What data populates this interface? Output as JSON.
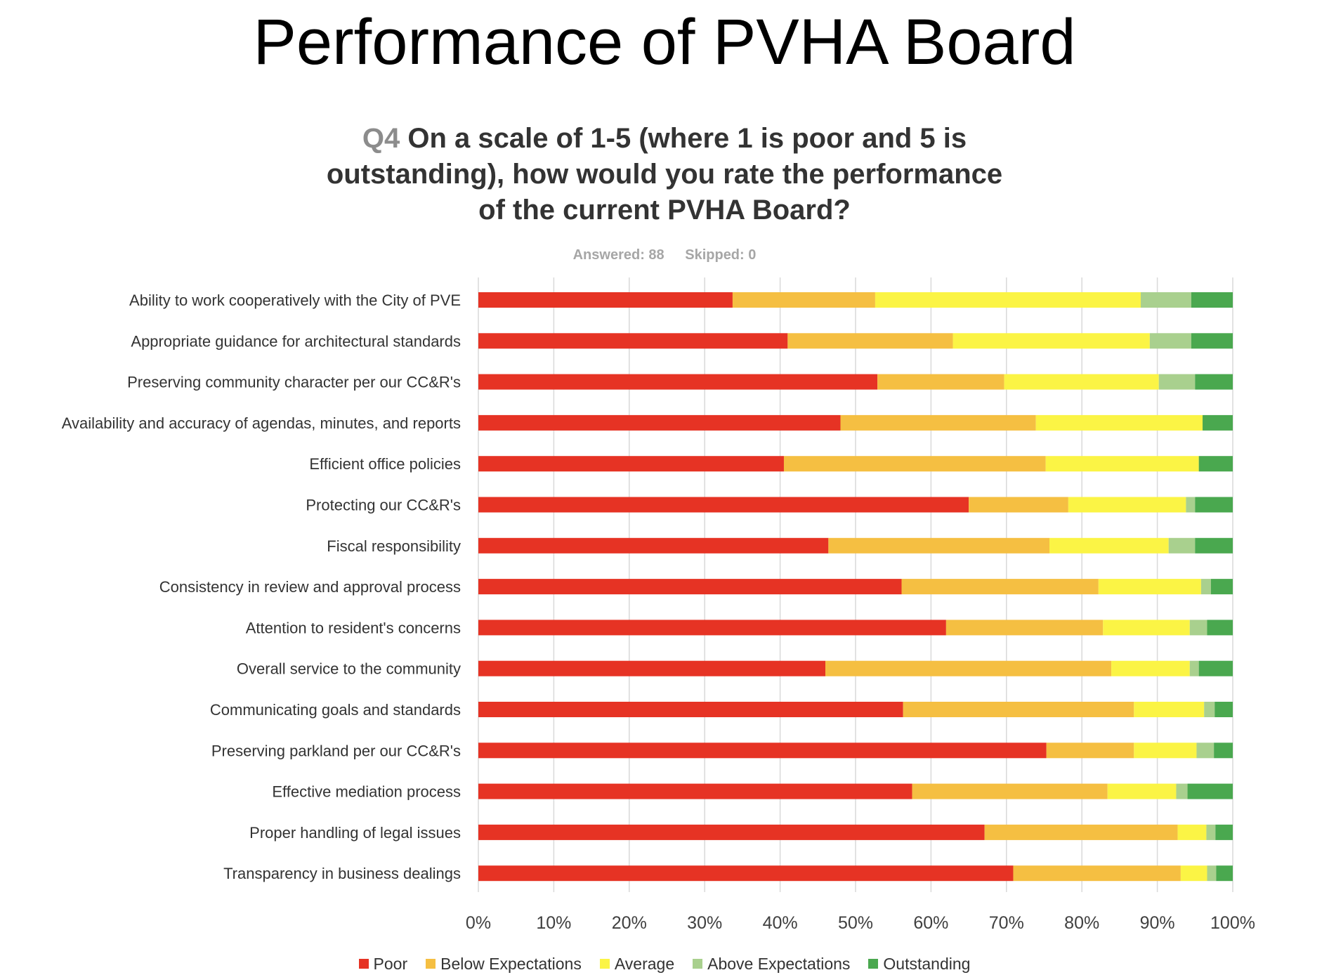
{
  "slide_title": "Performance of PVHA Board",
  "question": {
    "number": "Q4",
    "text": "On a scale of 1-5 (where 1 is poor and 5 is outstanding), how would you rate the performance of the current PVHA Board?"
  },
  "meta": {
    "answered": "Answered: 88",
    "skipped": "Skipped: 0"
  },
  "colors": {
    "Poor": "#e63324",
    "Below Expectations": "#f5bf42",
    "Average": "#fbf445",
    "Above Expectations": "#a9d08e",
    "Outstanding": "#4aa84f"
  },
  "chart_data": {
    "type": "bar",
    "orientation": "horizontal",
    "stacked": true,
    "percent": true,
    "xlim": [
      0,
      100
    ],
    "xticks": [
      "0%",
      "10%",
      "20%",
      "30%",
      "40%",
      "50%",
      "60%",
      "70%",
      "80%",
      "90%",
      "100%"
    ],
    "grid": true,
    "legend_position": "bottom",
    "categories": [
      "Ability to work cooperatively with the City of PVE",
      "Appropriate guidance for architectural standards",
      "Preserving community character per our CC&R's",
      "Availability and accuracy of agendas, minutes, and reports",
      "Efficient office policies",
      "Protecting our CC&R's",
      "Fiscal responsibility",
      "Consistency in review and approval process",
      "Attention to resident's concerns",
      "Overall service to the community",
      "Communicating goals and standards",
      "Preserving parkland per our CC&R's",
      "Effective mediation process",
      "Proper handling of legal issues",
      "Transparency in business dealings"
    ],
    "series": [
      {
        "name": "Poor",
        "values": [
          33.7,
          41.0,
          52.9,
          48.0,
          40.5,
          65.0,
          46.4,
          56.1,
          62.0,
          46.0,
          56.3,
          75.3,
          57.5,
          67.1,
          70.9
        ]
      },
      {
        "name": "Below Expectations",
        "values": [
          18.9,
          21.9,
          16.8,
          25.9,
          34.7,
          13.2,
          29.3,
          26.1,
          20.8,
          37.9,
          30.6,
          11.6,
          25.9,
          25.6,
          22.2
        ]
      },
      {
        "name": "Average",
        "values": [
          35.2,
          26.1,
          20.5,
          22.1,
          20.3,
          15.6,
          15.8,
          13.6,
          11.5,
          10.4,
          9.3,
          8.3,
          9.1,
          3.8,
          3.5
        ]
      },
      {
        "name": "Above Expectations",
        "values": [
          6.7,
          5.5,
          4.8,
          0.0,
          0.0,
          1.2,
          3.5,
          1.3,
          2.3,
          1.2,
          1.4,
          2.3,
          1.5,
          1.2,
          1.2
        ]
      },
      {
        "name": "Outstanding",
        "values": [
          5.5,
          5.5,
          5.0,
          4.0,
          4.5,
          5.0,
          5.0,
          2.9,
          3.4,
          4.5,
          2.4,
          2.5,
          6.0,
          2.3,
          2.2
        ]
      }
    ]
  }
}
